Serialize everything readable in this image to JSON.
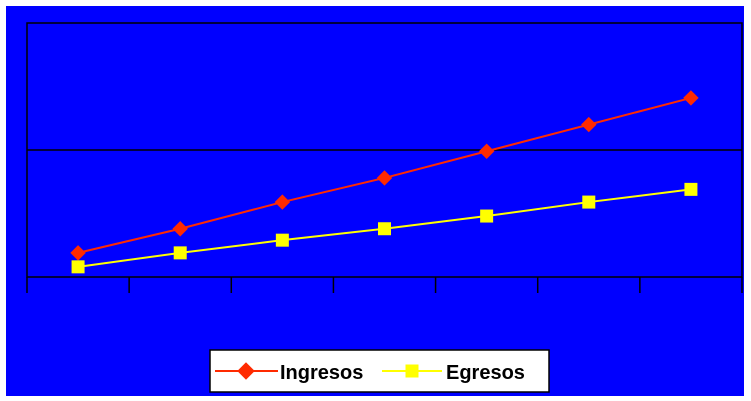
{
  "chart_data": {
    "type": "line",
    "title": "",
    "xlabel": "",
    "ylabel": "",
    "categories": [
      "",
      "",
      "",
      "",
      "",
      "",
      ""
    ],
    "ylim": [
      0,
      2
    ],
    "grid": true,
    "legend": "bottom-center",
    "series": [
      {
        "name": "Ingresos",
        "marker": "diamond",
        "color": "#ff2a00",
        "values": [
          0.19,
          0.38,
          0.59,
          0.78,
          0.99,
          1.2,
          1.41
        ]
      },
      {
        "name": "Egresos",
        "marker": "square",
        "color": "#ffff00",
        "values": [
          0.08,
          0.19,
          0.29,
          0.38,
          0.48,
          0.59,
          0.69
        ]
      }
    ]
  },
  "colors": {
    "background": "#0000ff",
    "frame": "#ffffff",
    "axis": "#000000",
    "ingresos": "#ff2a00",
    "egresos": "#ffff00",
    "legend_box": "#ffffff"
  }
}
